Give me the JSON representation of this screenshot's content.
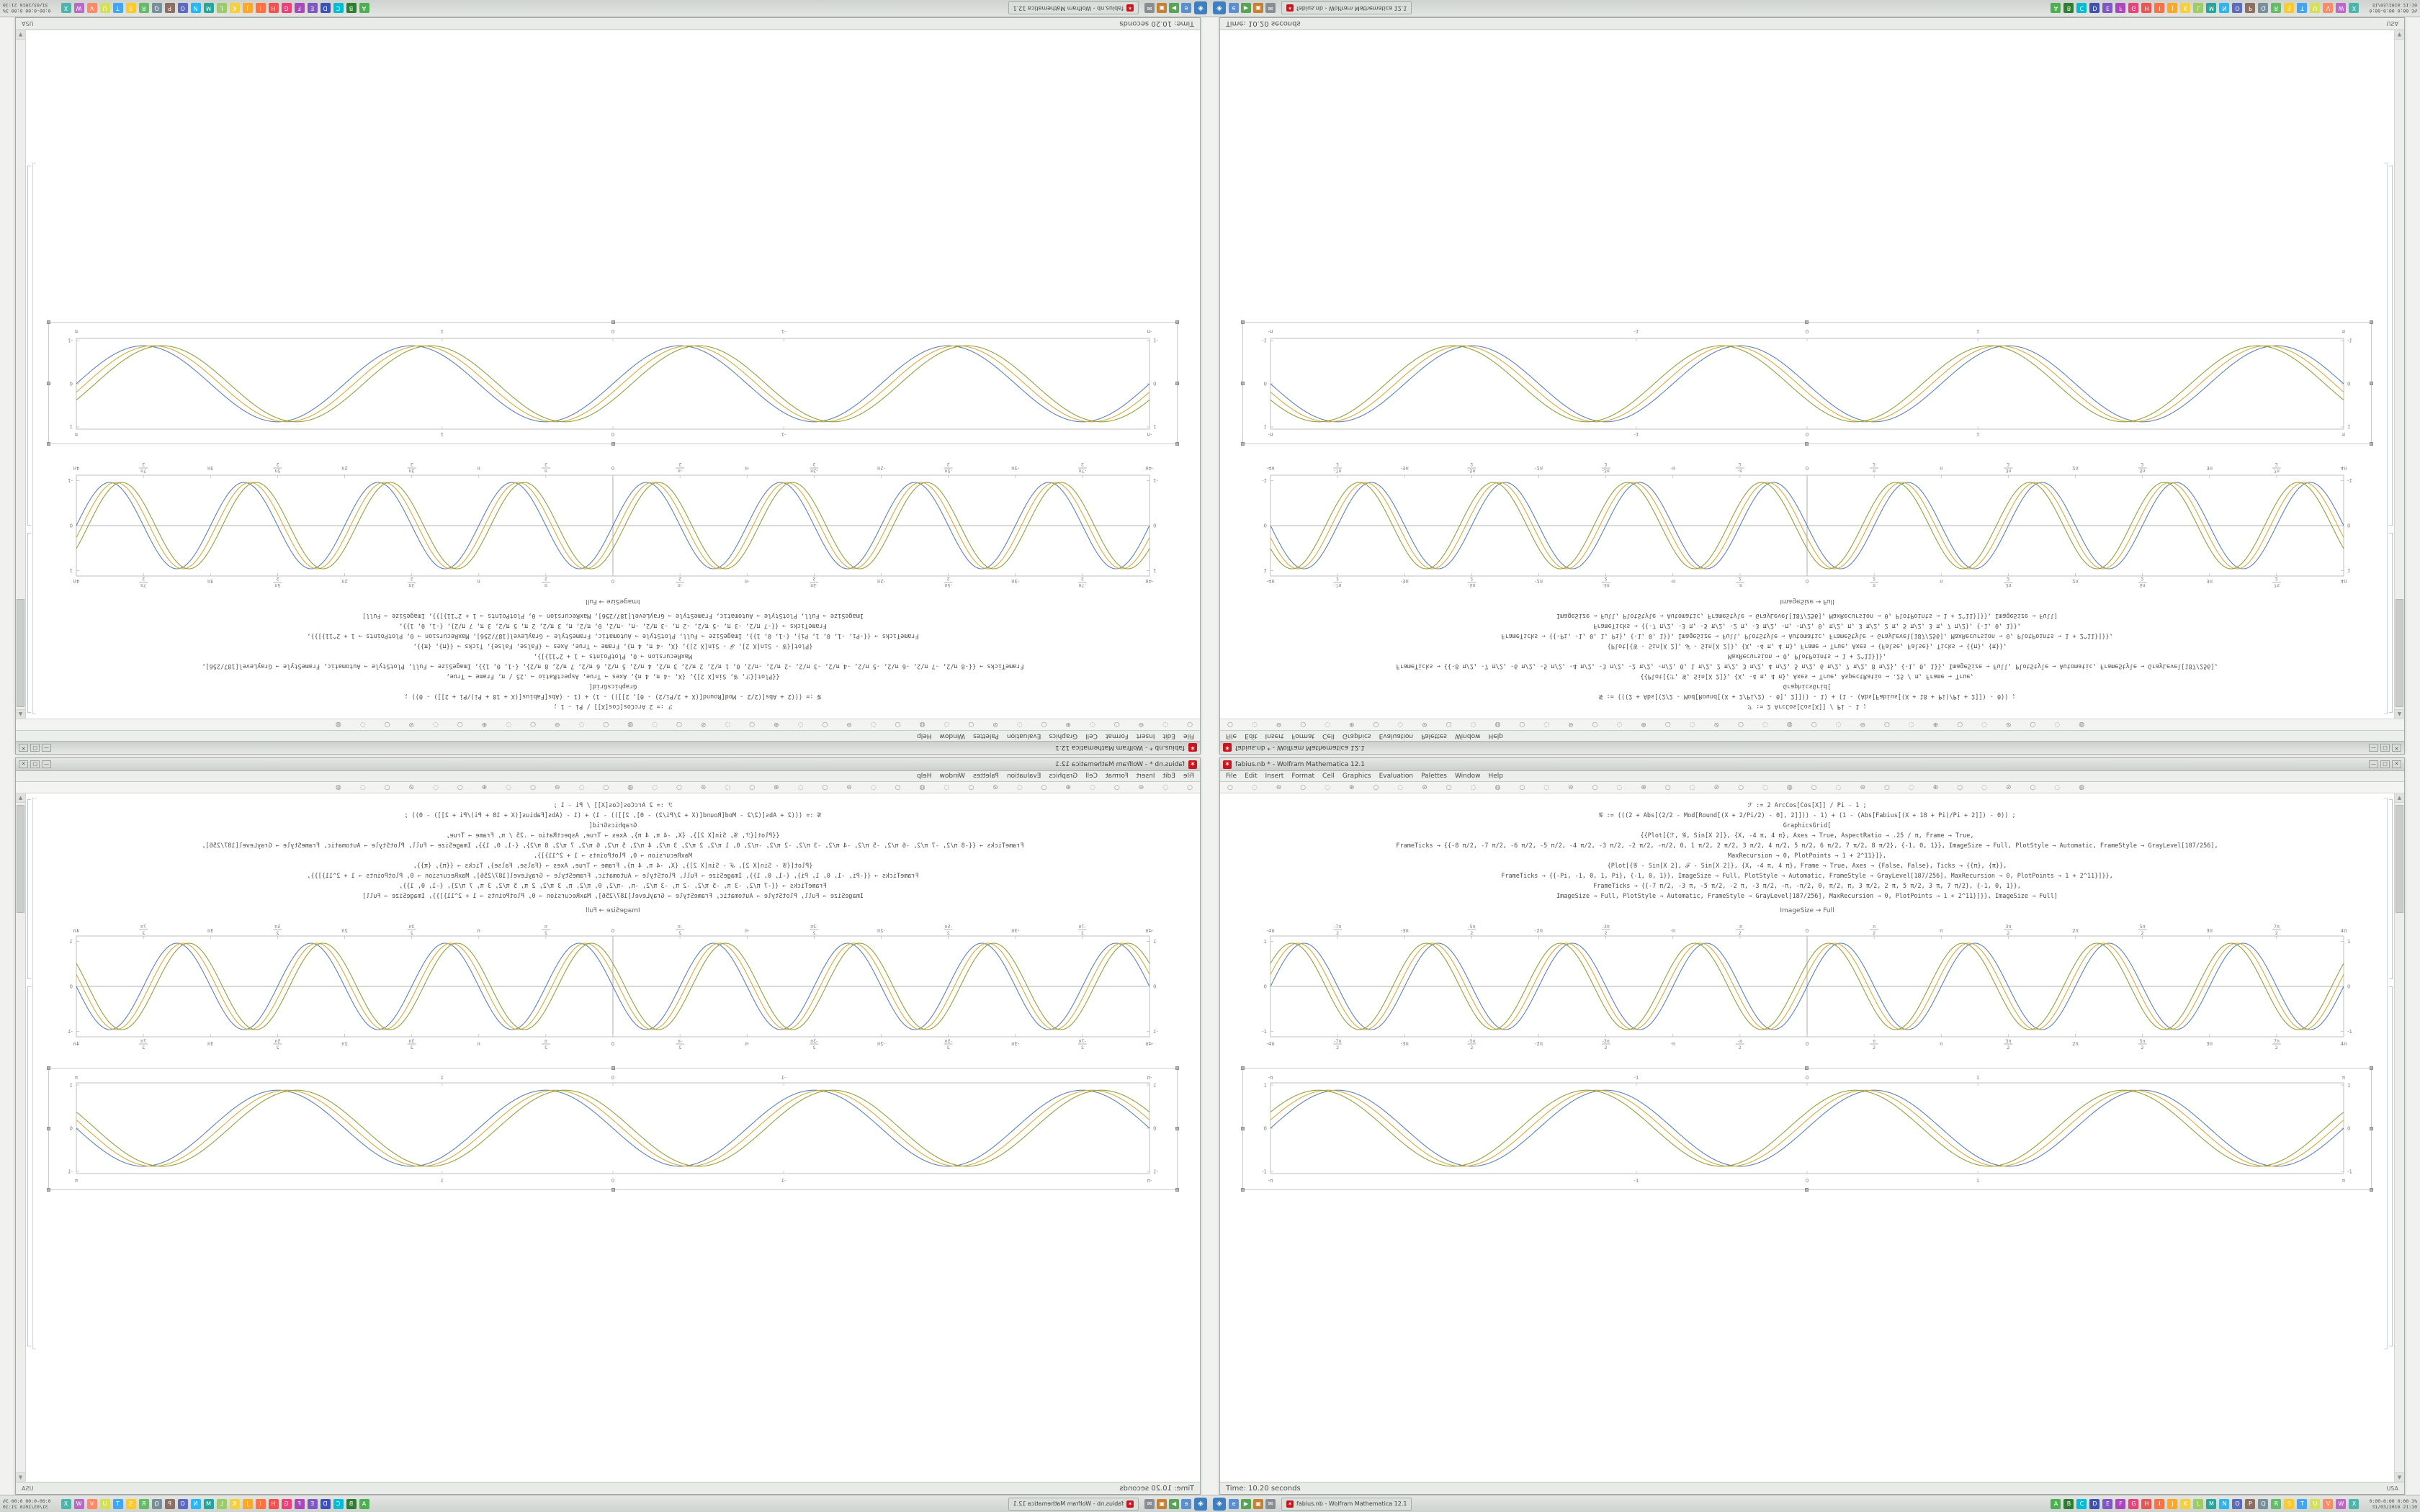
{
  "status": {
    "time_label": "Time: 10.20 seconds",
    "lang": "USA"
  },
  "window": {
    "title": "fabius.nb * - Wolfram Mathematica 12.1",
    "controls": [
      "—",
      "□",
      "✕"
    ],
    "menu": [
      "File",
      "Edit",
      "Insert",
      "Format",
      "Cell",
      "Graphics",
      "Evaluation",
      "Palettes",
      "Window",
      "Help"
    ],
    "toolbar_icons": [
      "○",
      "◌",
      "⊖",
      "○",
      "◌",
      "⊕",
      "○",
      "◌",
      "⊘",
      "○",
      "◌",
      "◍",
      "○",
      "◌",
      "⊖",
      "○",
      "◌",
      "⊕",
      "○",
      "◌",
      "⊘",
      "○",
      "◌",
      "◍",
      "○",
      "◌",
      "⊖",
      "○",
      "◌",
      "⊕",
      "○",
      "◌",
      "⊘",
      "○",
      "◌",
      "◍"
    ],
    "code_lines": [
      {
        "t": "ℱ := 2 ArcCos[Cos[X]] / Pi - 1 ;",
        "a": "c"
      },
      {
        "t": "𝒢 := (((2 + Abs[(2/2 - Mod[Round[(X + 2/Pi/2) - 0], 2]])) - 1) + (1 - (Abs[Fabius[(X + 18 + Pi)/Pi + 2]]) - 0)) ;",
        "a": "c"
      },
      {
        "t": "GraphicsGrid[",
        "a": "c"
      },
      {
        "t": "{{Plot[{ℱ, 𝒢, Sin[X 2]}, {X, -4 π, 4 π}, Axes → True, AspectRatio → .25 / π, Frame → True,",
        "a": "c"
      },
      {
        "t": "FrameTicks → {{-8 π/2, -7 π/2, -6 π/2, -5 π/2, -4 π/2, -3 π/2, -2 π/2, -π/2, 0, 1 π/2, 2 π/2, 3 π/2, 4 π/2, 5 π/2, 6 π/2, 7 π/2, 8 π/2}, {-1, 0, 1}}, ImageSize → Full, PlotStyle → Automatic, FrameStyle → GrayLevel[187/256],",
        "a": "c"
      },
      {
        "t": "MaxRecursion → 0, PlotPoints → 1 + 2^11}]},",
        "a": "c"
      },
      {
        "t": "{Plot[{𝒢 - Sin[X 2], ℱ - Sin[X 2]}, {X, -4 π, 4 π}, Frame → True, Axes → {False, False}, Ticks → {{π}, {π}},",
        "a": "c"
      },
      {
        "t": "FrameTicks → {{-Pi, -1, 0, 1, Pi}, {-1, 0, 1}}, ImageSize → Full, PlotStyle → Automatic, FrameStyle → GrayLevel[187/256], MaxRecursion → 0, PlotPoints → 1 + 2^11}]}},",
        "a": "c"
      },
      {
        "t": "FrameTicks → {{-7 π/2, -3 π, -5 π/2, -2 π, -3 π/2, -π, -π/2, 0, π/2, π, 3 π/2, 2 π, 5 π/2, 3 π, 7 π/2}, {-1, 0, 1}},",
        "a": "c"
      },
      {
        "t": "ImageSize → Full, PlotStyle → Automatic, FrameStyle → GrayLevel[187/256], MaxRecursion → 0, PlotPoints → 1 + 2^11}]}}, ImageSize → Full]",
        "a": "c"
      }
    ],
    "caption": "ImageSize → Full"
  },
  "taskbar": {
    "window_button": "fabius.nb - Wolfram Mathematica 12.1",
    "start_glyph": "◈",
    "quick": [
      {
        "name": "quick-launch-1",
        "color": "#5a8fd0",
        "glyph": "e"
      },
      {
        "name": "quick-launch-2",
        "color": "#57a457",
        "glyph": "▶"
      },
      {
        "name": "quick-launch-3",
        "color": "#c77f32",
        "glyph": "▣"
      },
      {
        "name": "quick-launch-4",
        "color": "#8a8e92",
        "glyph": "✉"
      }
    ],
    "tray": [
      {
        "name": "tray-app-1",
        "color": "#4caf50",
        "glyph": "A"
      },
      {
        "name": "tray-app-2",
        "color": "#2e7d32",
        "glyph": "B"
      },
      {
        "name": "tray-app-3",
        "color": "#00bcd4",
        "glyph": "C"
      },
      {
        "name": "tray-app-4",
        "color": "#3f51b5",
        "glyph": "D"
      },
      {
        "name": "tray-app-5",
        "color": "#7e57c2",
        "glyph": "E"
      },
      {
        "name": "tray-app-6",
        "color": "#ab47bc",
        "glyph": "F"
      },
      {
        "name": "tray-app-7",
        "color": "#ec407a",
        "glyph": "G"
      },
      {
        "name": "tray-app-8",
        "color": "#ef5350",
        "glyph": "H"
      },
      {
        "name": "tray-app-9",
        "color": "#ff7043",
        "glyph": "I"
      },
      {
        "name": "tray-app-10",
        "color": "#ffa726",
        "glyph": "J"
      },
      {
        "name": "tray-app-11",
        "color": "#f4d03f",
        "glyph": "K"
      },
      {
        "name": "tray-app-12",
        "color": "#9ccc65",
        "glyph": "L"
      },
      {
        "name": "tray-app-13",
        "color": "#26a69a",
        "glyph": "M"
      },
      {
        "name": "tray-app-14",
        "color": "#29b6f6",
        "glyph": "N"
      },
      {
        "name": "tray-app-15",
        "color": "#5c6bc0",
        "glyph": "O"
      },
      {
        "name": "tray-app-16",
        "color": "#8d6e63",
        "glyph": "P"
      },
      {
        "name": "tray-app-17",
        "color": "#78909c",
        "glyph": "Q"
      },
      {
        "name": "tray-app-18",
        "color": "#66bb6a",
        "glyph": "R"
      },
      {
        "name": "tray-app-19",
        "color": "#ffca28",
        "glyph": "S"
      },
      {
        "name": "tray-app-20",
        "color": "#42a5f5",
        "glyph": "T"
      },
      {
        "name": "tray-app-21",
        "color": "#d4e157",
        "glyph": "U"
      },
      {
        "name": "tray-app-22",
        "color": "#ff8a65",
        "glyph": "V"
      },
      {
        "name": "tray-app-23",
        "color": "#ba68c8",
        "glyph": "W"
      },
      {
        "name": "tray-app-24",
        "color": "#4db6ac",
        "glyph": "X"
      }
    ],
    "clock_line1": "0:00-0:00  0:00  3%",
    "clock_line2": "31/03/2016  21:10"
  },
  "chart_data": [
    {
      "type": "line",
      "title": "",
      "xlabel": "",
      "ylabel": "",
      "x_range": [
        -12.5664,
        12.5664
      ],
      "y_range": [
        -1.12,
        1.12
      ],
      "axes": true,
      "frame": true,
      "frame_color": "#bdc0bd",
      "xtick_vals": [
        -12.5664,
        -10.9956,
        -9.4248,
        -7.854,
        -6.2832,
        -4.7124,
        -3.1416,
        -1.5708,
        0,
        1.5708,
        3.1416,
        4.7124,
        6.2832,
        7.854,
        9.4248,
        10.9956,
        12.5664
      ],
      "xtick_labels": [
        "-4π",
        "-7π/2",
        "-3π",
        "-5π/2",
        "-2π",
        "-3π/2",
        "-π",
        "-π/2",
        "0",
        "π/2",
        "π",
        "3π/2",
        "2π",
        "5π/2",
        "3π",
        "7π/2",
        "4π"
      ],
      "ytick_vals": [
        -1,
        0,
        1
      ],
      "ytick_labels": [
        "-1",
        "0",
        "1"
      ],
      "series": [
        {
          "name": "blue-curve",
          "color": "#5e81b5",
          "freq": 2,
          "phase": 0.0,
          "amp": 0.96
        },
        {
          "name": "gold-curve",
          "color": "#d9aa3c",
          "freq": 2,
          "phase": 0.28,
          "amp": 0.96
        },
        {
          "name": "olive-curve",
          "color": "#91a13b",
          "freq": 2,
          "phase": 0.56,
          "amp": 0.96
        }
      ]
    },
    {
      "type": "line",
      "title": "",
      "xlabel": "",
      "ylabel": "",
      "x_range": [
        -3.1416,
        3.1416
      ],
      "y_range": [
        -1.05,
        1.05
      ],
      "axes": false,
      "frame": true,
      "frame_color": "#bdc0bd",
      "xtick_vals": [
        -3.1416,
        -1,
        0,
        1,
        3.1416
      ],
      "xtick_labels": [
        "-π",
        "-1",
        "0",
        "1",
        "π"
      ],
      "ytick_vals": [
        -1,
        0,
        1
      ],
      "ytick_labels": [
        "-1",
        "0",
        "1"
      ],
      "series": [
        {
          "name": "blue-curve",
          "color": "#5e81b5",
          "freq": 4,
          "phase": 0.0,
          "amp": 0.88
        },
        {
          "name": "gold-curve",
          "color": "#d9aa3c",
          "freq": 4,
          "phase": 0.22,
          "amp": 0.88
        },
        {
          "name": "olive-curve",
          "color": "#91a13b",
          "freq": 4,
          "phase": 0.44,
          "amp": 0.88
        }
      ]
    }
  ]
}
